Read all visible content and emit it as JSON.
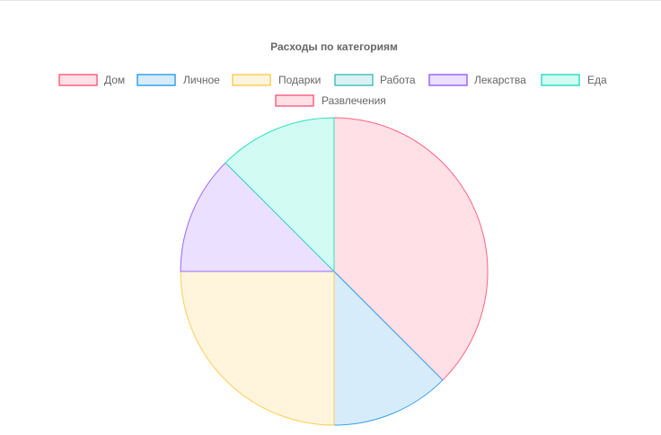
{
  "colors": {
    "background": "#ffffff",
    "text": "#666666",
    "slice_border": "#ffffff"
  },
  "chart_data": {
    "type": "pie",
    "title": "Расходы по категориям",
    "legend_position": "top",
    "categories": [
      "Дом",
      "Личное",
      "Подарки",
      "Работа",
      "Лекарства",
      "Еда",
      "Развлечения"
    ],
    "values": [
      37.5,
      12.5,
      25,
      0,
      12.5,
      12.5,
      0
    ],
    "fill_colors": [
      "#ffe0e6",
      "#d7ecfb",
      "#fff5dd",
      "#dbf2f2",
      "#ebe0ff",
      "#d2fbf4",
      "#ffe0e6"
    ],
    "border_colors": [
      "#ff6384",
      "#36a2eb",
      "#ffcd56",
      "#4bc0c0",
      "#9966ff",
      "#2de0c0",
      "#ff6384"
    ],
    "start_angle_deg": 0,
    "direction": "clockwise"
  }
}
